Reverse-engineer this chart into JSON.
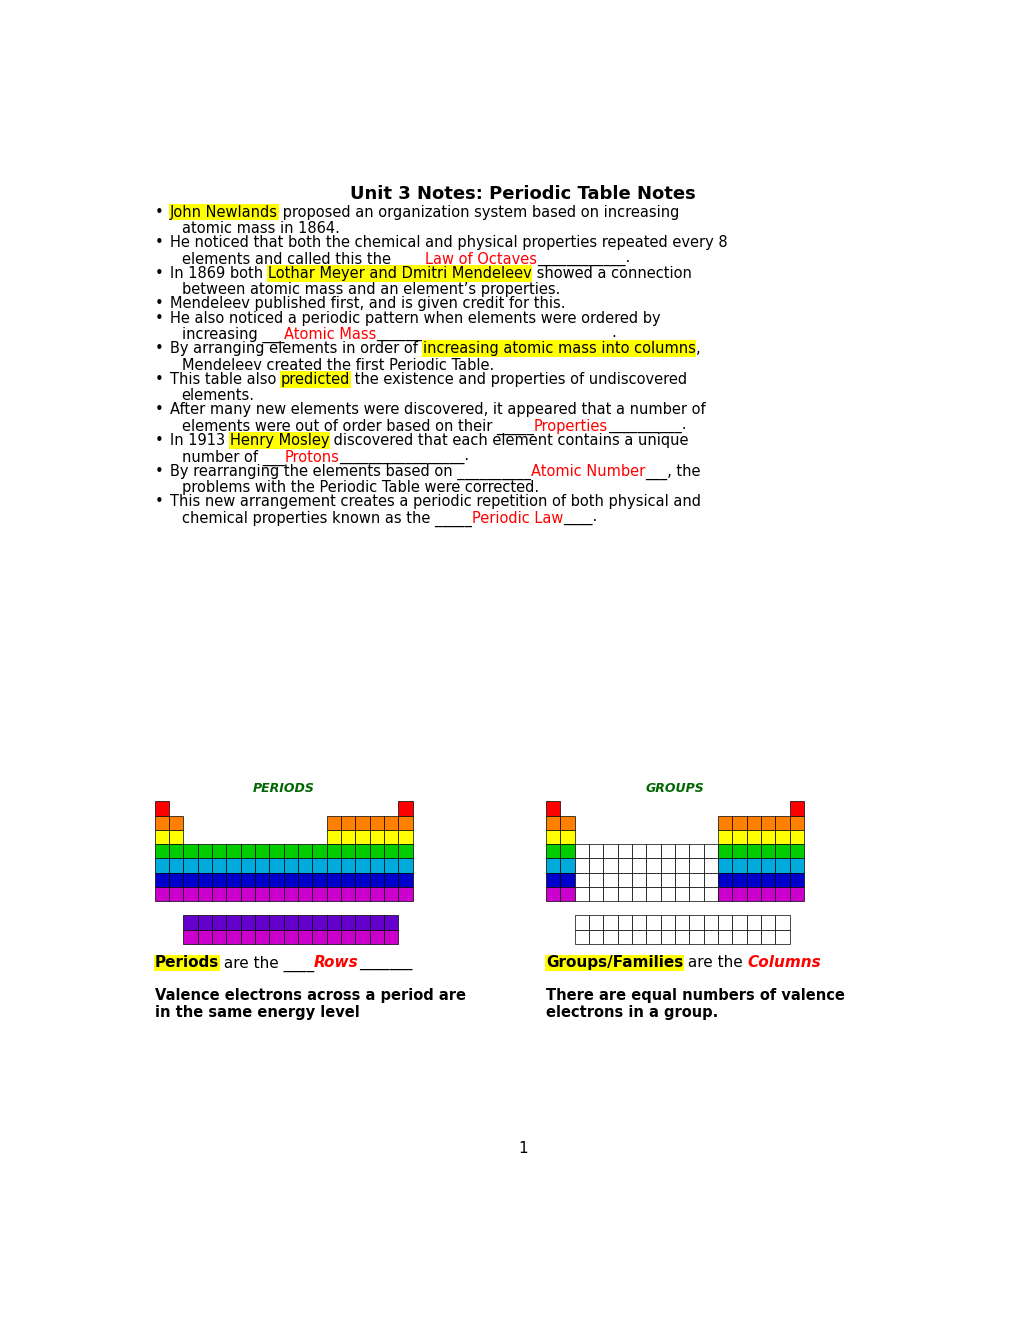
{
  "title": "Unit 3 Notes: Periodic Table Notes",
  "bullet_points": [
    {
      "text_parts": [
        {
          "text": "John Newlands",
          "highlight": "yellow",
          "color": "black"
        },
        {
          "text": " proposed an organization system based on increasing\n      atomic mass in 1864.",
          "highlight": null,
          "color": "black"
        }
      ]
    },
    {
      "text_parts": [
        {
          "text": "He noticed that both the chemical and physical properties repeated every 8\n      elements and called this the ____",
          "highlight": null,
          "color": "black"
        },
        {
          "text": "Law of Octaves",
          "highlight": null,
          "color": "red",
          "underline": true
        },
        {
          "text": "____________.",
          "highlight": null,
          "color": "black"
        }
      ]
    },
    {
      "text_parts": [
        {
          "text": "In 1869 both ",
          "highlight": null,
          "color": "black"
        },
        {
          "text": "Lothar Meyer and Dmitri Mendeleev",
          "highlight": "yellow",
          "color": "black"
        },
        {
          "text": " showed a connection\n      between atomic mass and an element’s properties.",
          "highlight": null,
          "color": "black"
        }
      ]
    },
    {
      "text_parts": [
        {
          "text": "Mendeleev published first, and is given credit for this.",
          "highlight": null,
          "color": "black"
        }
      ]
    },
    {
      "text_parts": [
        {
          "text": "He also noticed a periodic pattern when elements were ordered by\n      increasing ___",
          "highlight": null,
          "color": "black"
        },
        {
          "text": "Atomic Mass",
          "highlight": null,
          "color": "red",
          "underline": true
        },
        {
          "text": "________________________________.",
          "highlight": null,
          "color": "black"
        }
      ]
    },
    {
      "text_parts": [
        {
          "text": "By arranging elements in order of ",
          "highlight": null,
          "color": "black"
        },
        {
          "text": "increasing atomic mass into columns",
          "highlight": "yellow",
          "color": "black"
        },
        {
          "text": ",\n      Mendeleev created the first Periodic Table.",
          "highlight": null,
          "color": "black"
        }
      ]
    },
    {
      "text_parts": [
        {
          "text": "This table also ",
          "highlight": null,
          "color": "black"
        },
        {
          "text": "predicted",
          "highlight": "yellow",
          "color": "black"
        },
        {
          "text": " the existence and properties of undiscovered\n      elements.",
          "highlight": null,
          "color": "black"
        }
      ]
    },
    {
      "text_parts": [
        {
          "text": "After many new elements were discovered, it appeared that a number of\n      elements were out of order based on their _____",
          "highlight": null,
          "color": "black"
        },
        {
          "text": "Properties",
          "highlight": null,
          "color": "red",
          "underline": true
        },
        {
          "text": "__________.",
          "highlight": null,
          "color": "black"
        }
      ]
    },
    {
      "text_parts": [
        {
          "text": "In 1913 ",
          "highlight": null,
          "color": "black"
        },
        {
          "text": "Henry Mosley",
          "highlight": "yellow",
          "color": "black"
        },
        {
          "text": " discovered that each element contains a unique\n      number of ___",
          "highlight": null,
          "color": "black"
        },
        {
          "text": "Protons",
          "highlight": null,
          "color": "red",
          "underline": true
        },
        {
          "text": "_________________.",
          "highlight": null,
          "color": "black"
        }
      ]
    },
    {
      "text_parts": [
        {
          "text": "By rearranging the elements based on __________",
          "highlight": null,
          "color": "black"
        },
        {
          "text": "Atomic Number",
          "highlight": null,
          "color": "red",
          "underline": true
        },
        {
          "text": "___, the\n      problems with the Periodic Table were corrected.",
          "highlight": null,
          "color": "black"
        }
      ]
    },
    {
      "text_parts": [
        {
          "text": "This new arrangement creates a periodic repetition of both physical and\n      chemical properties known as the _____",
          "highlight": null,
          "color": "black"
        },
        {
          "text": "Periodic Law",
          "highlight": null,
          "color": "red",
          "underline": true
        },
        {
          "text": "____.",
          "highlight": null,
          "color": "black"
        }
      ]
    }
  ],
  "periods_label": "PERIODS",
  "groups_label": "GROUPS",
  "periods_text1": "Periods",
  "periods_text2": " are the ____",
  "periods_text3": "Rows",
  "periods_text4": "_______",
  "groups_text1": "Groups/Families",
  "groups_text2": " are the ",
  "groups_text3": "Columns",
  "valence_left": "Valence electrons across a period are\nin the same energy level",
  "valence_right": "There are equal numbers of valence\nelectrons in a group.",
  "page_num": "1",
  "colors": {
    "red": "#FF0000",
    "orange": "#FF8000",
    "yellow": "#FFFF00",
    "green": "#00CC00",
    "cyan": "#00AADD",
    "blue": "#0000CC",
    "purple": "#6600CC",
    "magenta": "#CC00CC",
    "dark_green": "#006600"
  }
}
